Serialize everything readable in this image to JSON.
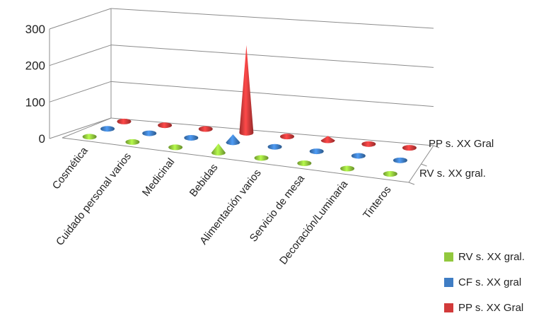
{
  "chart_data": {
    "type": "3d-cone",
    "title": "",
    "xlabel": "",
    "ylabel": "",
    "ylim": [
      0,
      300
    ],
    "yticks": [
      0,
      100,
      200,
      300
    ],
    "grid": true,
    "legend_position": "bottom-right",
    "categories": [
      "Cosmética",
      "Cuidado personal varios",
      "Medicinal",
      "Bebidas",
      "Alimentación varios",
      "Servicio de mesa",
      "Decoración/Luminaria",
      "Tinteros"
    ],
    "depth_axis_labels": [
      "PP s. XX Gral",
      "RV s. XX gral."
    ],
    "series": [
      {
        "name": "RV s. XX gral.",
        "color": "#92c83e",
        "values": [
          1,
          2,
          1,
          25,
          2,
          2,
          1,
          1
        ]
      },
      {
        "name": "CF s. XX gral",
        "color": "#3f7dc4",
        "values": [
          1,
          1,
          1,
          22,
          1,
          1,
          1,
          1
        ]
      },
      {
        "name": "PP s. XX Gral",
        "color": "#d23a3a",
        "values": [
          1,
          1,
          2,
          240,
          2,
          12,
          1,
          1
        ]
      }
    ]
  }
}
